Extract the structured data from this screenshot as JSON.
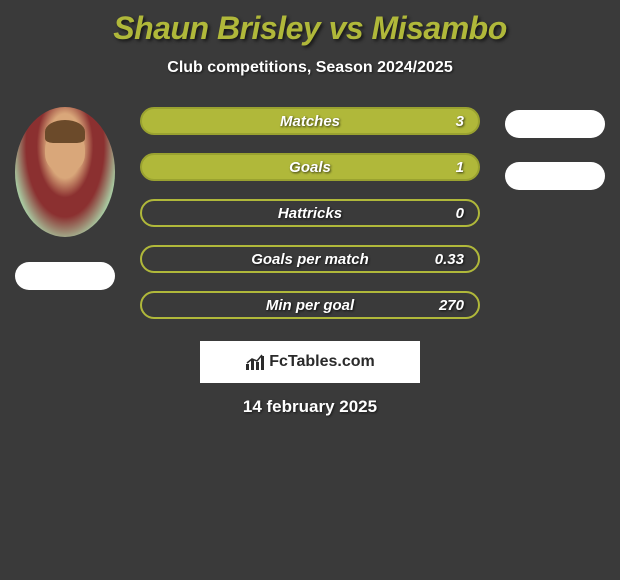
{
  "title": "Shaun Brisley vs Misambo",
  "subtitle": "Club competitions, Season 2024/2025",
  "stats": [
    {
      "label": "Matches",
      "value": "3",
      "filled": true
    },
    {
      "label": "Goals",
      "value": "1",
      "filled": true
    },
    {
      "label": "Hattricks",
      "value": "0",
      "filled": false
    },
    {
      "label": "Goals per match",
      "value": "0.33",
      "filled": false
    },
    {
      "label": "Min per goal",
      "value": "270",
      "filled": false
    }
  ],
  "right_pills_count": 2,
  "logo_text": "FcTables.com",
  "date": "14 february 2025",
  "colors": {
    "accent": "#b0b83a",
    "background": "#3a3a3a",
    "text": "#ffffff",
    "pill": "#ffffff"
  }
}
